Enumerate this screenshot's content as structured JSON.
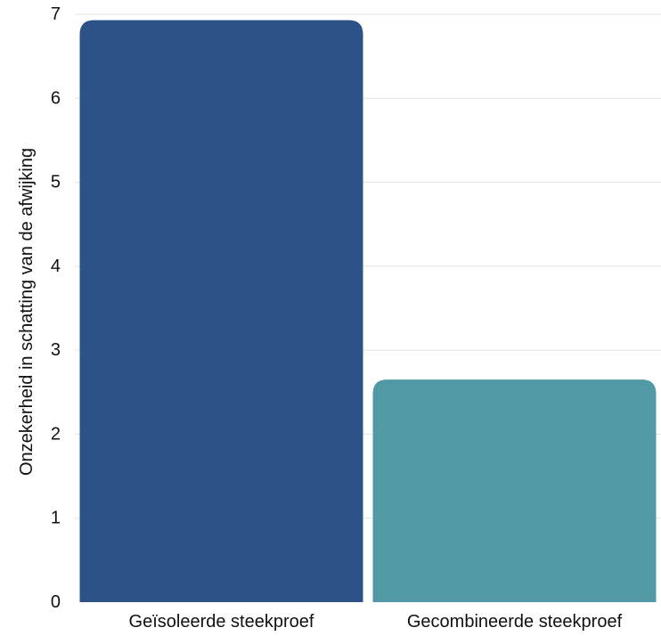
{
  "chart_data": {
    "type": "bar",
    "title": "",
    "xlabel": "",
    "ylabel": "Onzekerheid in schatting van de afwijking",
    "categories": [
      "Geïsoleerde steekproef",
      "Gecombineerde steekproef"
    ],
    "values": [
      6.93,
      2.65
    ],
    "colors": [
      "#2c5287",
      "#5099a5"
    ],
    "ylim": [
      0,
      7
    ],
    "yticks": [
      "0",
      "1",
      "2",
      "3",
      "4",
      "5",
      "6",
      "7"
    ],
    "grid": true,
    "legend": "none"
  }
}
